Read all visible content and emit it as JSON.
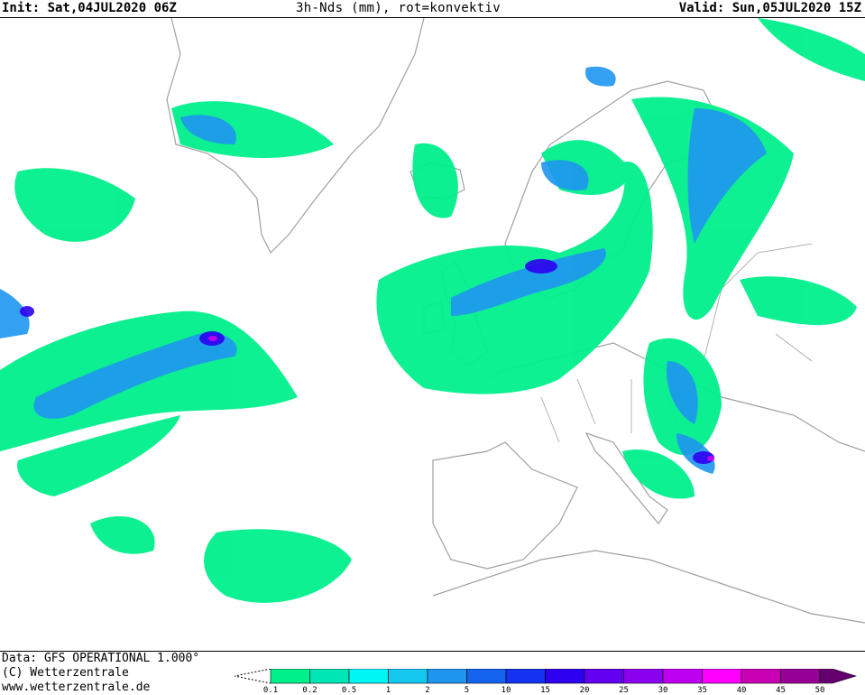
{
  "header": {
    "init": "Init: Sat,04JUL2020 06Z",
    "title": "3h-Nds (mm), rot=konvektiv",
    "valid": "Valid: Sun,05JUL2020 15Z"
  },
  "footer": {
    "data_source": "Data: GFS OPERATIONAL 1.000°",
    "copyright": "(C) Wetterzentrale",
    "url": "www.wetterzentrale.de"
  },
  "legend": {
    "unit": "mm",
    "ticks": [
      "0.1",
      "0.2",
      "0.5",
      "1",
      "2",
      "5",
      "10",
      "15",
      "20",
      "25",
      "30",
      "35",
      "40",
      "45",
      "50"
    ],
    "colors": [
      "#00f08c",
      "#00e6b4",
      "#00f5f5",
      "#14c8f0",
      "#1e96f0",
      "#1464f0",
      "#1432f0",
      "#2d00f0",
      "#6400f0",
      "#8c00f0",
      "#be00f0",
      "#ff00ff",
      "#c800b4",
      "#960096",
      "#64006e"
    ],
    "convective_marker_color": "#d2825a"
  },
  "map": {
    "coastline_color": "#a0a0a0",
    "region": "North Atlantic and Europe"
  }
}
